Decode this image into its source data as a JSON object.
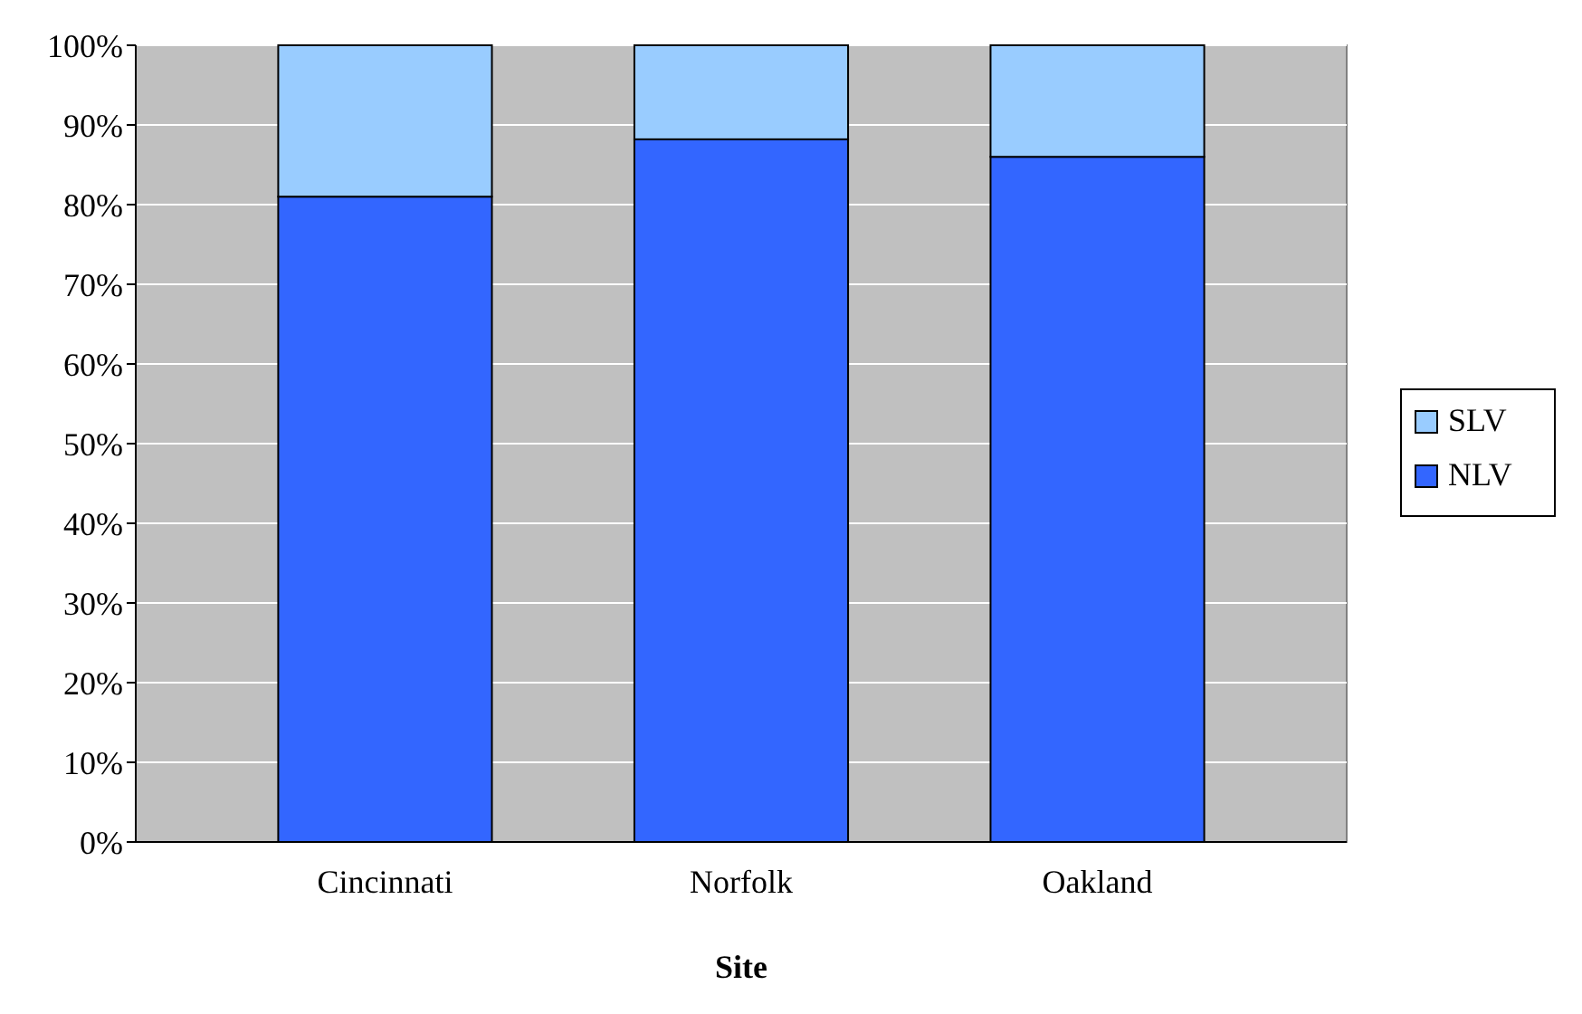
{
  "chart_data": {
    "type": "bar",
    "stacked": true,
    "xlabel": "Site",
    "categories": [
      "Cincinnati",
      "Norfolk",
      "Oakland"
    ],
    "series": [
      {
        "name": "NLV",
        "color": "#3366ff",
        "values": [
          81,
          88.2,
          86
        ]
      },
      {
        "name": "SLV",
        "color": "#99ccff",
        "values": [
          19,
          11.8,
          14
        ]
      }
    ],
    "ylim": [
      0,
      100
    ],
    "yticks": [
      {
        "value": 0,
        "label": "0%"
      },
      {
        "value": 10,
        "label": "10%"
      },
      {
        "value": 20,
        "label": "20%"
      },
      {
        "value": 30,
        "label": "30%"
      },
      {
        "value": 40,
        "label": "40%"
      },
      {
        "value": 50,
        "label": "50%"
      },
      {
        "value": 60,
        "label": "60%"
      },
      {
        "value": 70,
        "label": "70%"
      },
      {
        "value": 80,
        "label": "80%"
      },
      {
        "value": 90,
        "label": "90%"
      },
      {
        "value": 100,
        "label": "100%"
      }
    ],
    "grid": "y",
    "legend": "right"
  }
}
